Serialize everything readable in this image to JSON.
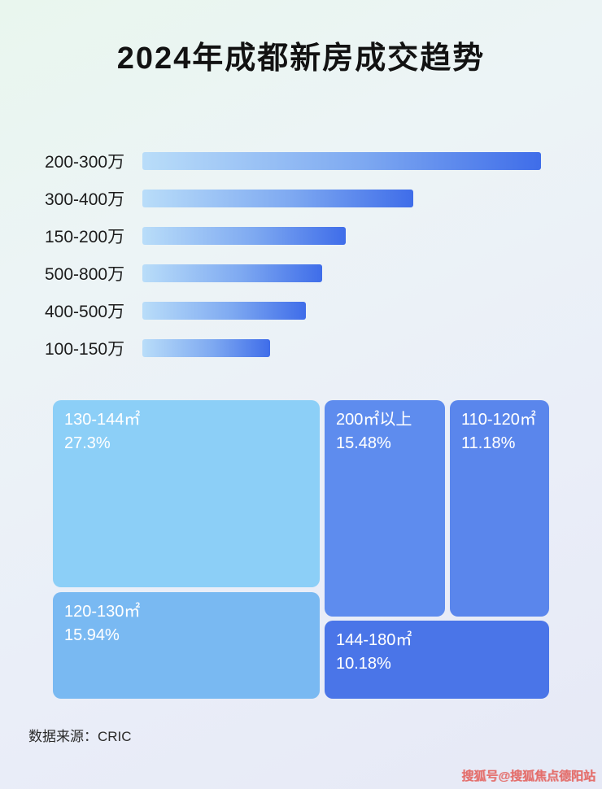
{
  "page": {
    "title": "2024年成都新房成交趋势",
    "source": "数据来源：CRIC",
    "watermark": "搜狐号@搜狐焦点德阳站"
  },
  "colors": {
    "bar_gradient_start": "#b9ddf9",
    "bar_gradient_end": "#3f6de9",
    "box_130_144": "#8ccff7",
    "box_120_130": "#79b9f2",
    "box_200_plus": "#5e8cee",
    "box_110_120": "#5a86ec",
    "box_144_180": "#4a75e8",
    "watermark": "#e46f6c"
  },
  "chart_data": [
    {
      "type": "bar",
      "orientation": "horizontal",
      "categories": [
        "200-300万",
        "300-400万",
        "150-200万",
        "500-800万",
        "400-500万",
        "100-150万"
      ],
      "values": [
        100,
        68,
        51,
        45,
        41,
        32
      ],
      "value_note": "relative bar lengths estimated from pixels; no numeric labels shown",
      "xlim": [
        0,
        100
      ],
      "grid": false,
      "legend": false
    },
    {
      "type": "treemap",
      "items": [
        {
          "label": "130-144㎡",
          "value": "27.3%",
          "color": "#8ccff7"
        },
        {
          "label": "200㎡以上",
          "value": "15.48%",
          "color": "#5e8cee"
        },
        {
          "label": "110-120㎡",
          "value": "11.18%",
          "color": "#5a86ec"
        },
        {
          "label": "120-130㎡",
          "value": "15.94%",
          "color": "#79b9f2"
        },
        {
          "label": "144-180㎡",
          "value": "10.18%",
          "color": "#4a75e8"
        }
      ]
    }
  ]
}
